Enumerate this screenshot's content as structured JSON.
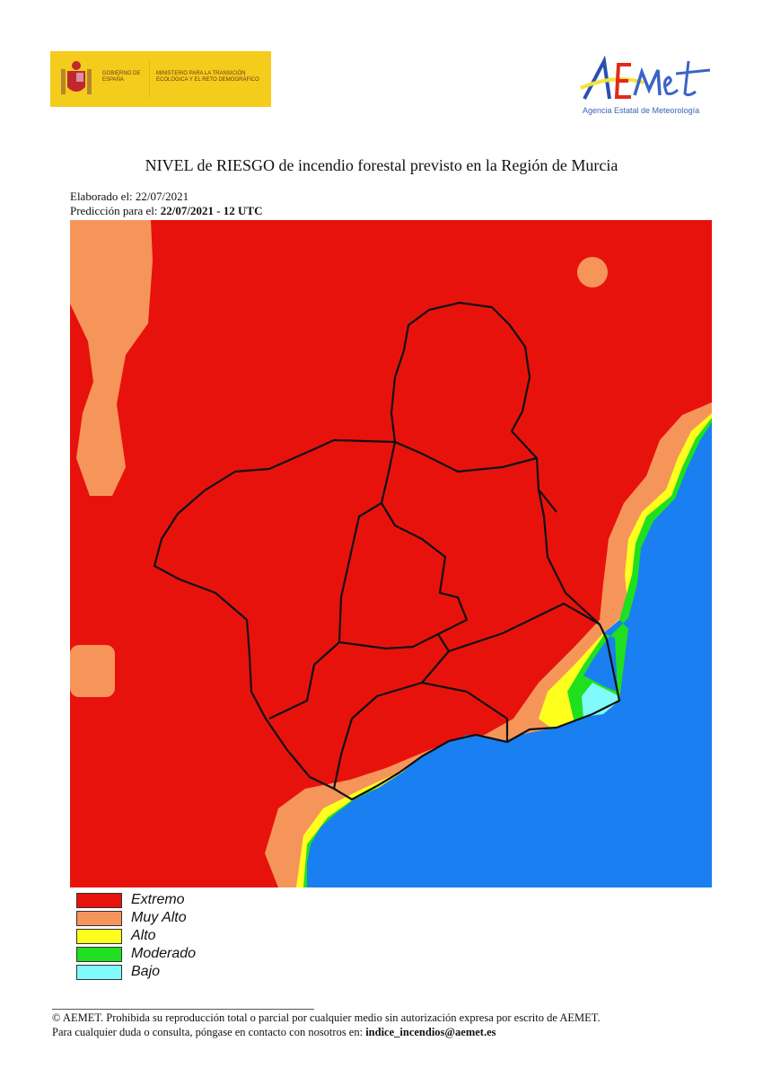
{
  "header": {
    "gov_logo": {
      "line1": "GOBIERNO DE ESPAÑA",
      "line2": "MINISTERIO PARA LA TRANSICIÓN ECOLÓGICA Y EL RETO DEMOGRÁFICO"
    },
    "aemet_logo": {
      "wordmark": "AEMet",
      "subtitle": "Agencia Estatal de Meteorología"
    }
  },
  "title": "NIVEL de RIESGO de incendio forestal previsto en la Región de Murcia",
  "elaborado_label": "Elaborado el: 22/07/2021",
  "prediccion_label": "Predicción para el: ",
  "prediccion_value": "22/07/2021 - 12 UTC",
  "map": {
    "region": "Región de Murcia",
    "sea_color": "#1a7ff0"
  },
  "legend": [
    {
      "label": "Extremo",
      "color": "#e8120c"
    },
    {
      "label": "Muy Alto",
      "color": "#f6955a"
    },
    {
      "label": "Alto",
      "color": "#ffff1e"
    },
    {
      "label": "Moderado",
      "color": "#1ee01e"
    },
    {
      "label": "Bajo",
      "color": "#80fafa"
    }
  ],
  "footer": {
    "line1": "© AEMET. Prohibida su reproducción total o parcial por cualquier medio sin autorización expresa por escrito de AEMET.",
    "line2": "Para cualquier duda o consulta, póngase en contacto con nosotros en: ",
    "email": "indice_incendios@aemet.es"
  }
}
